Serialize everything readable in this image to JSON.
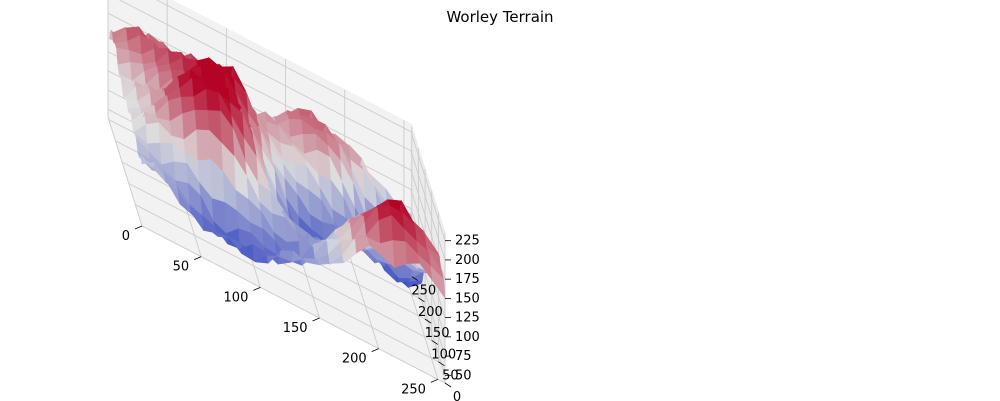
{
  "chart_data": {
    "type": "surface3d",
    "title": "Worley Terrain",
    "colormap": "coolwarm",
    "x_ticks": [
      "0",
      "50",
      "100",
      "150",
      "200",
      "250"
    ],
    "y_ticks": [
      "0",
      "50",
      "100",
      "150",
      "200",
      "250"
    ],
    "z_ticks": [
      "50",
      "75",
      "100",
      "125",
      "150",
      "175",
      "200",
      "225"
    ],
    "xlim": [
      0,
      256
    ],
    "ylim": [
      0,
      256
    ],
    "zlim": [
      40,
      235
    ],
    "grid": true,
    "peaks": [
      {
        "x": 70,
        "y": 90,
        "z": 230
      },
      {
        "x": 90,
        "y": 160,
        "z": 225
      },
      {
        "x": 220,
        "y": 40,
        "z": 225
      },
      {
        "x": 30,
        "y": 215,
        "z": 190
      },
      {
        "x": 180,
        "y": 230,
        "z": 200
      }
    ],
    "valleys": [
      {
        "x": 230,
        "y": 190,
        "z": 55
      },
      {
        "x": 150,
        "y": 130,
        "z": 60
      },
      {
        "x": 70,
        "y": 20,
        "z": 70
      },
      {
        "x": 130,
        "y": 40,
        "z": 90
      }
    ]
  },
  "colors": {
    "low": "#3b4cc0",
    "mid": "#dddddd",
    "high": "#b40426"
  }
}
